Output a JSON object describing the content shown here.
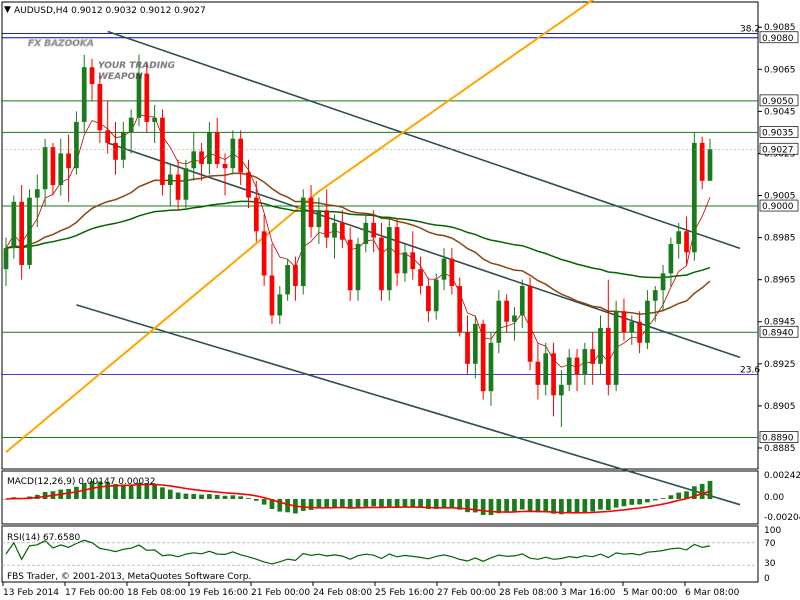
{
  "header": {
    "symbol_line": "AUDUSD,H4  0.9012 0.9032 0.9012 0.9027",
    "menu_glyph": "▼"
  },
  "watermark": {
    "brand": "FX BAZOOKA",
    "tagline_1": "YOUR TRADING",
    "tagline_2": "WEAPON"
  },
  "footer": {
    "copyright": "FBS Trader, © 2001-2013, MetaQuotes Software Corp."
  },
  "colors": {
    "bull": "#1b7a1b",
    "bear": "#ff0000",
    "grid_line": "#0000cc",
    "level_line": "#1b7a1b",
    "channel": "#2f4f4f",
    "ema_slow": "#ffa500",
    "ema_mid": "#8b4513",
    "ema_fast": "#006400",
    "macd_line": "#ff0000",
    "rsi_line": "#006400"
  },
  "chart_data": {
    "type": "candlestick",
    "symbol": "AUDUSD",
    "timeframe": "H4",
    "ylim": [
      0.8875,
      0.9097
    ],
    "y_ticks": [
      0.9085,
      0.9065,
      0.9045,
      0.9025,
      0.9005,
      0.8985,
      0.8965,
      0.8945,
      0.8925,
      0.8905,
      0.8885
    ],
    "x_tick_labels": [
      "13 Feb 2014",
      "17 Feb 00:00",
      "18 Feb 08:00",
      "19 Feb 16:00",
      "21 Feb 00:00",
      "24 Feb 08:00",
      "25 Feb 16:00",
      "27 Feb 00:00",
      "28 Feb 08:00",
      "3 Mar 16:00",
      "5 Mar 00:00",
      "6 Mar 08:00"
    ],
    "horizontal_levels": [
      {
        "label": "0.9080",
        "value": 0.908,
        "color": "blue"
      },
      {
        "label": "0.9050",
        "value": 0.905,
        "color": "green"
      },
      {
        "label": "0.9035",
        "value": 0.9035,
        "color": "green"
      },
      {
        "label": "0.9000",
        "value": 0.9,
        "color": "green"
      },
      {
        "label": "0.8940",
        "value": 0.894,
        "color": "green"
      },
      {
        "label": "0.8890",
        "value": 0.889,
        "color": "green"
      }
    ],
    "fib_levels": [
      {
        "label": "38.2",
        "value": 0.9082
      },
      {
        "label": "23.6",
        "value": 0.892
      }
    ],
    "current_price": {
      "label": "0.9027",
      "value": 0.9027
    },
    "candles": [
      [
        0.897,
        0.8985,
        0.8962,
        0.898
      ],
      [
        0.898,
        0.9005,
        0.8975,
        0.9002
      ],
      [
        0.9002,
        0.901,
        0.8965,
        0.8972
      ],
      [
        0.8972,
        0.9008,
        0.897,
        0.9004
      ],
      [
        0.9004,
        0.9015,
        0.899,
        0.9008
      ],
      [
        0.9008,
        0.9032,
        0.9,
        0.9028
      ],
      [
        0.9028,
        0.903,
        0.9005,
        0.901
      ],
      [
        0.901,
        0.9032,
        0.9005,
        0.9025
      ],
      [
        0.9025,
        0.9034,
        0.9002,
        0.9018
      ],
      [
        0.9018,
        0.9045,
        0.9015,
        0.904
      ],
      [
        0.904,
        0.9072,
        0.9035,
        0.9066
      ],
      [
        0.9066,
        0.907,
        0.905,
        0.9058
      ],
      [
        0.9058,
        0.9062,
        0.903,
        0.9036
      ],
      [
        0.9036,
        0.905,
        0.9025,
        0.903
      ],
      [
        0.903,
        0.904,
        0.9015,
        0.9022
      ],
      [
        0.9022,
        0.904,
        0.9018,
        0.9035
      ],
      [
        0.9035,
        0.9046,
        0.9025,
        0.9042
      ],
      [
        0.9042,
        0.9072,
        0.9038,
        0.9063
      ],
      [
        0.9063,
        0.9068,
        0.9035,
        0.904
      ],
      [
        0.904,
        0.9048,
        0.903,
        0.9042
      ],
      [
        0.9042,
        0.9046,
        0.9005,
        0.901
      ],
      [
        0.901,
        0.902,
        0.9,
        0.9015
      ],
      [
        0.9015,
        0.9022,
        0.8998,
        0.9003
      ],
      [
        0.9003,
        0.9022,
        0.8999,
        0.9018
      ],
      [
        0.9018,
        0.9035,
        0.9012,
        0.9026
      ],
      [
        0.9026,
        0.903,
        0.9012,
        0.902
      ],
      [
        0.902,
        0.904,
        0.9015,
        0.9035
      ],
      [
        0.9035,
        0.9042,
        0.9018,
        0.902
      ],
      [
        0.902,
        0.9025,
        0.9005,
        0.9018
      ],
      [
        0.9018,
        0.9036,
        0.9015,
        0.9032
      ],
      [
        0.9032,
        0.9036,
        0.901,
        0.9016
      ],
      [
        0.9016,
        0.9022,
        0.8999,
        0.9004
      ],
      [
        0.9004,
        0.9012,
        0.8983,
        0.8988
      ],
      [
        0.8988,
        0.8996,
        0.8962,
        0.8967
      ],
      [
        0.8967,
        0.8982,
        0.8944,
        0.8948
      ],
      [
        0.8948,
        0.8962,
        0.8944,
        0.8958
      ],
      [
        0.8958,
        0.8975,
        0.8955,
        0.8972
      ],
      [
        0.8972,
        0.8976,
        0.8955,
        0.8962
      ],
      [
        0.8962,
        0.9008,
        0.8958,
        0.9004
      ],
      [
        0.9004,
        0.901,
        0.8985,
        0.899
      ],
      [
        0.899,
        0.9004,
        0.8982,
        0.8998
      ],
      [
        0.8998,
        0.9008,
        0.898,
        0.8985
      ],
      [
        0.8985,
        0.8996,
        0.8975,
        0.8992
      ],
      [
        0.8992,
        0.8998,
        0.898,
        0.8984
      ],
      [
        0.8984,
        0.899,
        0.8955,
        0.896
      ],
      [
        0.896,
        0.8985,
        0.8955,
        0.8982
      ],
      [
        0.8982,
        0.8996,
        0.8978,
        0.8992
      ],
      [
        0.8992,
        0.8998,
        0.8978,
        0.8985
      ],
      [
        0.8985,
        0.8992,
        0.8955,
        0.896
      ],
      [
        0.896,
        0.8995,
        0.8955,
        0.899
      ],
      [
        0.899,
        0.8994,
        0.8962,
        0.8968
      ],
      [
        0.8968,
        0.8982,
        0.8964,
        0.8978
      ],
      [
        0.8978,
        0.8988,
        0.8965,
        0.897
      ],
      [
        0.897,
        0.8976,
        0.8958,
        0.8962
      ],
      [
        0.8962,
        0.8966,
        0.8945,
        0.895
      ],
      [
        0.895,
        0.8968,
        0.8946,
        0.8965
      ],
      [
        0.8965,
        0.898,
        0.896,
        0.8975
      ],
      [
        0.8975,
        0.898,
        0.8958,
        0.8962
      ],
      [
        0.8962,
        0.8966,
        0.8938,
        0.894
      ],
      [
        0.894,
        0.8948,
        0.892,
        0.8925
      ],
      [
        0.8925,
        0.8948,
        0.8918,
        0.8944
      ],
      [
        0.8944,
        0.8946,
        0.8908,
        0.8912
      ],
      [
        0.8912,
        0.894,
        0.8905,
        0.8935
      ],
      [
        0.8935,
        0.896,
        0.893,
        0.8955
      ],
      [
        0.8955,
        0.8958,
        0.894,
        0.8945
      ],
      [
        0.8945,
        0.8952,
        0.8936,
        0.8948
      ],
      [
        0.8948,
        0.8965,
        0.8942,
        0.8962
      ],
      [
        0.8962,
        0.8966,
        0.8922,
        0.8926
      ],
      [
        0.8926,
        0.8935,
        0.8908,
        0.8915
      ],
      [
        0.8915,
        0.8935,
        0.891,
        0.893
      ],
      [
        0.893,
        0.8935,
        0.89,
        0.891
      ],
      [
        0.891,
        0.8922,
        0.8895,
        0.8915
      ],
      [
        0.8915,
        0.8932,
        0.8912,
        0.8928
      ],
      [
        0.8928,
        0.8932,
        0.8912,
        0.892
      ],
      [
        0.892,
        0.8935,
        0.8915,
        0.8932
      ],
      [
        0.8932,
        0.894,
        0.8915,
        0.8925
      ],
      [
        0.8925,
        0.8948,
        0.892,
        0.8942
      ],
      [
        0.8942,
        0.8965,
        0.891,
        0.8915
      ],
      [
        0.8915,
        0.8955,
        0.8912,
        0.895
      ],
      [
        0.895,
        0.8956,
        0.8936,
        0.894
      ],
      [
        0.894,
        0.8948,
        0.8934,
        0.8945
      ],
      [
        0.8945,
        0.895,
        0.893,
        0.8935
      ],
      [
        0.8935,
        0.896,
        0.8932,
        0.8955
      ],
      [
        0.8955,
        0.8962,
        0.8945,
        0.896
      ],
      [
        0.896,
        0.8972,
        0.895,
        0.8968
      ],
      [
        0.8968,
        0.8985,
        0.8962,
        0.8982
      ],
      [
        0.8982,
        0.8992,
        0.8975,
        0.8988
      ],
      [
        0.8988,
        0.8995,
        0.8972,
        0.8978
      ],
      [
        0.8978,
        0.9035,
        0.8974,
        0.903
      ],
      [
        0.903,
        0.9033,
        0.9008,
        0.9012
      ],
      [
        0.9012,
        0.9032,
        0.9012,
        0.9027
      ]
    ],
    "macd": {
      "label": "MACD(12,26,9) 0.00147 0.00032",
      "y_ticks": [
        "0.00242",
        "0.00",
        "-0.00204"
      ]
    },
    "rsi": {
      "label": "RSI(14) 67.6580",
      "y_ticks": [
        "100",
        "70",
        "30",
        "0"
      ],
      "last_value": 67.658
    }
  }
}
